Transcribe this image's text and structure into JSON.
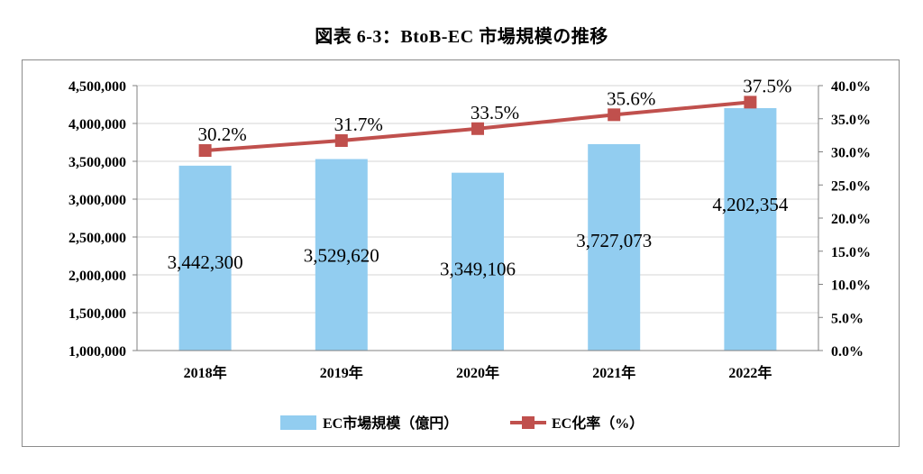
{
  "title": "図表 6-3：BtoB-EC 市場規模の推移",
  "chart_data": {
    "type": "bar",
    "categories": [
      "2018年",
      "2019年",
      "2020年",
      "2021年",
      "2022年"
    ],
    "series": [
      {
        "name": "EC市場規模（億円）",
        "type": "bar",
        "axis": "left",
        "values": [
          3442300,
          3529620,
          3349106,
          3727073,
          4202354
        ],
        "labels": [
          "3,442,300",
          "3,529,620",
          "3,349,106",
          "3,727,073",
          "4,202,354"
        ],
        "color": "#92cdf0"
      },
      {
        "name": "EC化率（%）",
        "type": "line",
        "axis": "right",
        "values": [
          30.2,
          31.7,
          33.5,
          35.6,
          37.5
        ],
        "labels": [
          "30.2%",
          "31.7%",
          "33.5%",
          "35.6%",
          "37.5%"
        ],
        "color": "#c0504d"
      }
    ],
    "y_left": {
      "min": 1000000,
      "max": 4500000,
      "step": 500000,
      "ticks": [
        "1,000,000",
        "1,500,000",
        "2,000,000",
        "2,500,000",
        "3,000,000",
        "3,500,000",
        "4,000,000",
        "4,500,000"
      ]
    },
    "y_right": {
      "min": 0,
      "max": 40,
      "step": 5,
      "ticks": [
        "0.0%",
        "5.0%",
        "10.0%",
        "15.0%",
        "20.0%",
        "25.0%",
        "30.0%",
        "35.0%",
        "40.0%"
      ]
    },
    "grid": true,
    "legend_position": "bottom",
    "legend": [
      "EC市場規模（億円）",
      "EC化率（%）"
    ]
  }
}
